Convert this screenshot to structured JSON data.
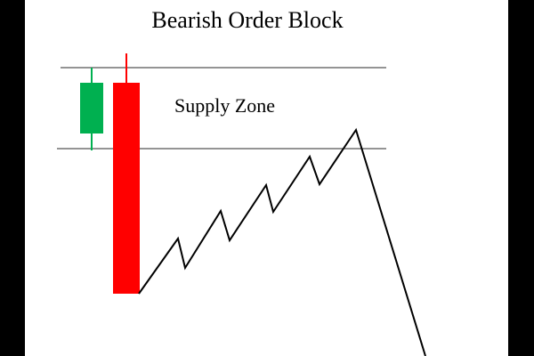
{
  "diagram": {
    "title": "Bearish Order Block",
    "zone_label": "Supply Zone"
  },
  "colors": {
    "bullish_candle": "#00b050",
    "bearish_candle": "#ff0000",
    "zone_line": "#555555",
    "price_path": "#000000",
    "background": "#ffffff",
    "frame": "#000000"
  }
}
